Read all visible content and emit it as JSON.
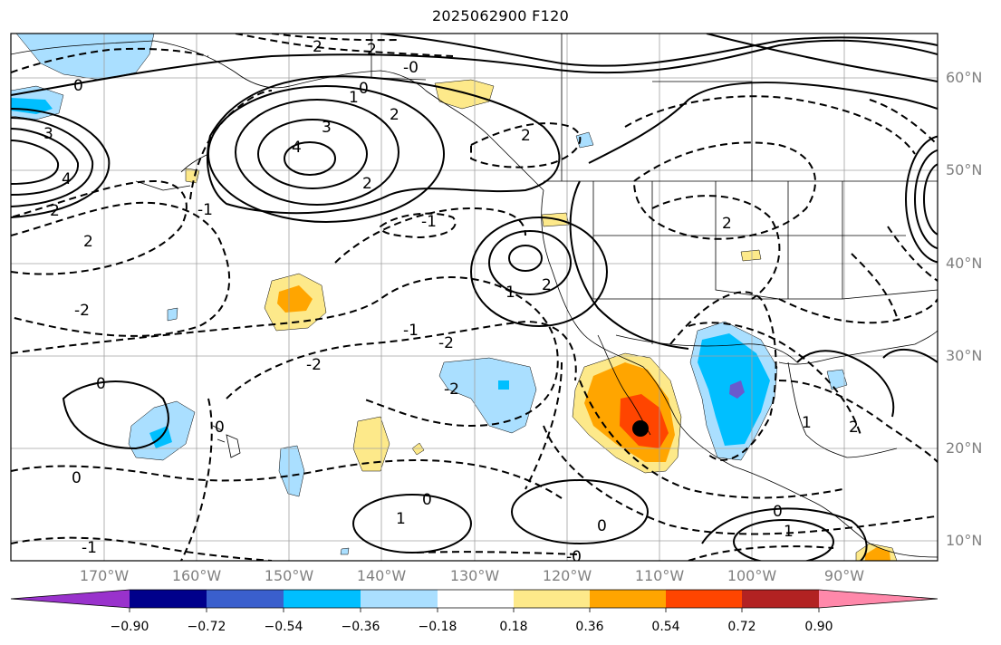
{
  "title": "2025062900 F120",
  "map": {
    "region": "North Pacific / western North America",
    "field_contours": "black solid (positive) and dashed (negative) contours",
    "contour_labels": [
      "3",
      "2",
      "2",
      "1",
      "0",
      "-0",
      "2",
      "4",
      "3",
      "4",
      "2",
      "2",
      "2",
      "0",
      "-1",
      "-2",
      "2",
      "2",
      "1",
      "2",
      "-2",
      "-2",
      "-1",
      "-2",
      "0",
      "0",
      "0",
      "1",
      "0",
      "0",
      "1",
      "-0",
      "0",
      "1",
      "-1",
      "2",
      "-1"
    ]
  },
  "lat_labels": [
    "60°N",
    "50°N",
    "40°N",
    "30°N",
    "20°N",
    "10°N"
  ],
  "lon_labels": [
    "170°W",
    "160°W",
    "150°W",
    "140°W",
    "130°W",
    "120°W",
    "110°W",
    "100°W",
    "90°W"
  ],
  "colorbar": {
    "labels": [
      "−0.90",
      "−0.72",
      "−0.54",
      "−0.36",
      "−0.18",
      "0.18",
      "0.36",
      "0.54",
      "0.72",
      "0.90"
    ],
    "colors": [
      "#9932cc",
      "#00008b",
      "#3a5fcd",
      "#00bfff",
      "#aadfff",
      "#ffffff",
      "#fde98a",
      "#ffa500",
      "#ff4500",
      "#b22222",
      "#ff88aa"
    ]
  },
  "marker": {
    "color": "#000000",
    "label": "storm center"
  }
}
